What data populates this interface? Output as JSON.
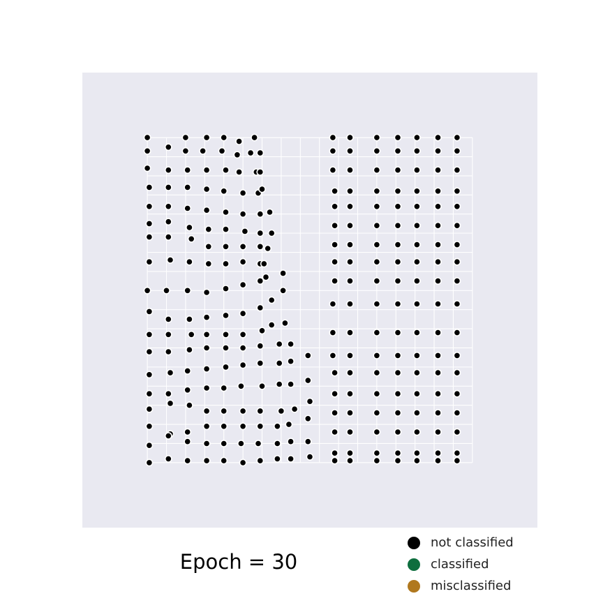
{
  "chart_data": {
    "type": "scatter",
    "title": "Epoch = 30",
    "xlabel": "",
    "ylabel": "",
    "xlim": [
      -3.4,
      20.4
    ],
    "ylim": [
      -3.4,
      20.4
    ],
    "grid": true,
    "legend_placement": "bottom-right",
    "x_gridlines": [
      0,
      1,
      2,
      3,
      4,
      5,
      6,
      7,
      8,
      9,
      10,
      11,
      12,
      13,
      14,
      15,
      16,
      17
    ],
    "y_gridlines": [
      0,
      1,
      2,
      3,
      4,
      5,
      6,
      7,
      8,
      9,
      10,
      11,
      12,
      13,
      14,
      15,
      16,
      17
    ],
    "series": [
      {
        "name": "not classified",
        "color": "#000000",
        "points": [
          [
            0,
            17
          ],
          [
            1.1,
            16.5
          ],
          [
            2,
            17
          ],
          [
            3.1,
            17
          ],
          [
            4,
            17
          ],
          [
            4.8,
            16.8
          ],
          [
            5.6,
            17
          ],
          [
            0,
            16.3
          ],
          [
            2,
            16.3
          ],
          [
            2.9,
            16.3
          ],
          [
            3.9,
            16.3
          ],
          [
            4.7,
            16.1
          ],
          [
            5.4,
            16.2
          ],
          [
            5.9,
            16.2
          ],
          [
            0,
            15.4
          ],
          [
            1.1,
            15.3
          ],
          [
            2.1,
            15.3
          ],
          [
            3.1,
            15.3
          ],
          [
            4.1,
            15.3
          ],
          [
            4.8,
            15.2
          ],
          [
            5.7,
            15.2
          ],
          [
            5.9,
            15.2
          ],
          [
            0.1,
            14.4
          ],
          [
            1.1,
            14.4
          ],
          [
            2.1,
            14.4
          ],
          [
            3.1,
            14.3
          ],
          [
            4,
            14.2
          ],
          [
            5,
            14.1
          ],
          [
            5.8,
            14.1
          ],
          [
            6,
            14.3
          ],
          [
            0.1,
            13.4
          ],
          [
            1.1,
            13.4
          ],
          [
            2.1,
            13.3
          ],
          [
            3.1,
            13.2
          ],
          [
            4.1,
            13.1
          ],
          [
            5,
            13
          ],
          [
            5.9,
            13
          ],
          [
            6.4,
            13.1
          ],
          [
            0.1,
            12.5
          ],
          [
            1.1,
            12.6
          ],
          [
            2.2,
            12.3
          ],
          [
            3.2,
            12.2
          ],
          [
            4.1,
            12.2
          ],
          [
            5.1,
            12.1
          ],
          [
            5.9,
            12
          ],
          [
            6.5,
            12
          ],
          [
            0.1,
            11.8
          ],
          [
            1.1,
            11.8
          ],
          [
            2.3,
            11.7
          ],
          [
            3.2,
            11.3
          ],
          [
            4.1,
            11.3
          ],
          [
            5,
            11.3
          ],
          [
            5.9,
            11.3
          ],
          [
            6.3,
            11.2
          ],
          [
            0.1,
            10.5
          ],
          [
            1.2,
            10.6
          ],
          [
            2.2,
            10.5
          ],
          [
            3.2,
            10.4
          ],
          [
            4.1,
            10.4
          ],
          [
            5,
            10.5
          ],
          [
            5.9,
            10.4
          ],
          [
            6.1,
            10.4
          ],
          [
            0,
            9
          ],
          [
            1,
            9
          ],
          [
            2.1,
            9
          ],
          [
            3.1,
            8.9
          ],
          [
            4.1,
            9.1
          ],
          [
            5,
            9.3
          ],
          [
            5.9,
            9.5
          ],
          [
            6.2,
            9.7
          ],
          [
            7.1,
            9.9
          ],
          [
            0.1,
            7.9
          ],
          [
            1.1,
            7.5
          ],
          [
            2.2,
            7.5
          ],
          [
            3.1,
            7.6
          ],
          [
            4.1,
            7.7
          ],
          [
            5,
            7.8
          ],
          [
            5.9,
            8.1
          ],
          [
            6.5,
            8.5
          ],
          [
            7.1,
            9
          ],
          [
            0.1,
            6.7
          ],
          [
            1.1,
            6.7
          ],
          [
            2.3,
            6.7
          ],
          [
            3.1,
            6.7
          ],
          [
            4.1,
            6.7
          ],
          [
            5,
            6.7
          ],
          [
            6,
            6.9
          ],
          [
            6.5,
            7.2
          ],
          [
            7.2,
            7.3
          ],
          [
            0.1,
            5.8
          ],
          [
            1.1,
            5.8
          ],
          [
            2.2,
            5.9
          ],
          [
            3.1,
            6
          ],
          [
            4.1,
            6
          ],
          [
            5,
            6
          ],
          [
            5.9,
            6.1
          ],
          [
            6.9,
            6.2
          ],
          [
            7.5,
            6.2
          ],
          [
            0.1,
            4.6
          ],
          [
            1.2,
            4.7
          ],
          [
            2.1,
            4.8
          ],
          [
            3.1,
            4.9
          ],
          [
            4.1,
            5
          ],
          [
            5,
            5.1
          ],
          [
            5.9,
            5.2
          ],
          [
            6.9,
            5.2
          ],
          [
            7.5,
            5.3
          ],
          [
            8.4,
            5.6
          ],
          [
            0.1,
            3.6
          ],
          [
            1.1,
            3.6
          ],
          [
            2.1,
            3.8
          ],
          [
            3.1,
            3.9
          ],
          [
            4,
            3.9
          ],
          [
            4.9,
            4
          ],
          [
            6,
            4
          ],
          [
            6.9,
            4.1
          ],
          [
            7.5,
            4.1
          ],
          [
            8.4,
            4.3
          ],
          [
            0.1,
            2.8
          ],
          [
            1.2,
            3.1
          ],
          [
            2.2,
            3
          ],
          [
            3.1,
            2.7
          ],
          [
            4,
            2.7
          ],
          [
            5,
            2.7
          ],
          [
            5.9,
            2.7
          ],
          [
            7,
            2.7
          ],
          [
            7.7,
            2.8
          ],
          [
            8.5,
            3.2
          ],
          [
            0.1,
            1.9
          ],
          [
            1.2,
            1.5
          ],
          [
            2.1,
            1.6
          ],
          [
            3.1,
            1.9
          ],
          [
            4,
            1.9
          ],
          [
            5,
            1.9
          ],
          [
            5.9,
            1.9
          ],
          [
            6.8,
            1.9
          ],
          [
            7.4,
            2
          ],
          [
            8.4,
            2.3
          ],
          [
            0.1,
            0.9
          ],
          [
            1.1,
            1.4
          ],
          [
            2.1,
            1.1
          ],
          [
            3.1,
            1
          ],
          [
            4,
            1
          ],
          [
            4.9,
            1
          ],
          [
            5.8,
            1
          ],
          [
            6.8,
            1
          ],
          [
            7.5,
            1.1
          ],
          [
            8.4,
            1.1
          ],
          [
            0.1,
            0
          ],
          [
            1.1,
            0.2
          ],
          [
            2.1,
            0.1
          ],
          [
            3.1,
            0.1
          ],
          [
            4,
            0.1
          ],
          [
            5,
            0
          ],
          [
            5.9,
            0.1
          ],
          [
            6.8,
            0.2
          ],
          [
            7.5,
            0.2
          ],
          [
            8.5,
            0.3
          ],
          [
            9.7,
            17
          ],
          [
            10.6,
            17
          ],
          [
            12,
            17
          ],
          [
            13.1,
            17
          ],
          [
            14.1,
            17
          ],
          [
            15.2,
            17
          ],
          [
            16.2,
            17
          ],
          [
            9.7,
            16.3
          ],
          [
            10.6,
            16.3
          ],
          [
            12,
            16.3
          ],
          [
            13.1,
            16.3
          ],
          [
            14.1,
            16.3
          ],
          [
            15.2,
            16.3
          ],
          [
            16.2,
            16.3
          ],
          [
            9.7,
            15.3
          ],
          [
            10.6,
            15.3
          ],
          [
            12,
            15.3
          ],
          [
            13.1,
            15.3
          ],
          [
            14.1,
            15.3
          ],
          [
            15.2,
            15.3
          ],
          [
            16.2,
            15.3
          ],
          [
            9.8,
            14.2
          ],
          [
            10.6,
            14.2
          ],
          [
            12,
            14.2
          ],
          [
            13.1,
            14.2
          ],
          [
            14.1,
            14.2
          ],
          [
            15.2,
            14.2
          ],
          [
            16.2,
            14.2
          ],
          [
            9.8,
            13.4
          ],
          [
            10.6,
            13.4
          ],
          [
            12,
            13.4
          ],
          [
            13.1,
            13.4
          ],
          [
            14.1,
            13.4
          ],
          [
            15.2,
            13.4
          ],
          [
            16.2,
            13.4
          ],
          [
            9.8,
            12.4
          ],
          [
            10.6,
            12.4
          ],
          [
            12,
            12.4
          ],
          [
            13.1,
            12.4
          ],
          [
            14.1,
            12.4
          ],
          [
            15.2,
            12.4
          ],
          [
            16.2,
            12.4
          ],
          [
            9.8,
            11.4
          ],
          [
            10.6,
            11.4
          ],
          [
            12,
            11.4
          ],
          [
            13.1,
            11.4
          ],
          [
            14.1,
            11.4
          ],
          [
            15.2,
            11.4
          ],
          [
            16.2,
            11.4
          ],
          [
            9.8,
            10.5
          ],
          [
            10.6,
            10.5
          ],
          [
            12,
            10.5
          ],
          [
            13.1,
            10.5
          ],
          [
            14.1,
            10.5
          ],
          [
            15.2,
            10.5
          ],
          [
            16.2,
            10.5
          ],
          [
            9.8,
            9.5
          ],
          [
            10.6,
            9.5
          ],
          [
            12,
            9.5
          ],
          [
            13.1,
            9.5
          ],
          [
            14.1,
            9.5
          ],
          [
            15.2,
            9.5
          ],
          [
            16.2,
            9.5
          ],
          [
            9.7,
            8.3
          ],
          [
            10.6,
            8.3
          ],
          [
            12,
            8.3
          ],
          [
            13.1,
            8.3
          ],
          [
            14.1,
            8.3
          ],
          [
            15.2,
            8.3
          ],
          [
            16.2,
            8.3
          ],
          [
            9.7,
            6.8
          ],
          [
            10.6,
            6.8
          ],
          [
            12,
            6.8
          ],
          [
            13.1,
            6.8
          ],
          [
            14.1,
            6.8
          ],
          [
            15.2,
            6.8
          ],
          [
            16.2,
            6.8
          ],
          [
            9.7,
            5.6
          ],
          [
            10.6,
            5.6
          ],
          [
            12,
            5.6
          ],
          [
            13.1,
            5.6
          ],
          [
            14.1,
            5.6
          ],
          [
            15.2,
            5.6
          ],
          [
            16.2,
            5.6
          ],
          [
            9.8,
            4.7
          ],
          [
            10.6,
            4.7
          ],
          [
            12,
            4.7
          ],
          [
            13.1,
            4.7
          ],
          [
            14.1,
            4.7
          ],
          [
            15.2,
            4.7
          ],
          [
            16.2,
            4.7
          ],
          [
            9.8,
            3.6
          ],
          [
            10.6,
            3.6
          ],
          [
            12,
            3.6
          ],
          [
            13.1,
            3.6
          ],
          [
            14.1,
            3.6
          ],
          [
            15.2,
            3.6
          ],
          [
            16.2,
            3.6
          ],
          [
            9.8,
            2.6
          ],
          [
            10.6,
            2.6
          ],
          [
            12,
            2.6
          ],
          [
            13.1,
            2.6
          ],
          [
            14.1,
            2.6
          ],
          [
            15.2,
            2.6
          ],
          [
            16.2,
            2.6
          ],
          [
            9.8,
            1.6
          ],
          [
            10.6,
            1.6
          ],
          [
            12,
            1.6
          ],
          [
            13.1,
            1.6
          ],
          [
            14.1,
            1.6
          ],
          [
            15.2,
            1.6
          ],
          [
            16.2,
            1.6
          ],
          [
            9.8,
            0.5
          ],
          [
            10.6,
            0.5
          ],
          [
            12,
            0.5
          ],
          [
            13.1,
            0.5
          ],
          [
            14.1,
            0.5
          ],
          [
            15.2,
            0.5
          ],
          [
            16.2,
            0.5
          ],
          [
            9.8,
            0.1
          ],
          [
            10.6,
            0.1
          ],
          [
            12,
            0.1
          ],
          [
            13.1,
            0.1
          ],
          [
            14.1,
            0.1
          ],
          [
            15.2,
            0.1
          ],
          [
            16.2,
            0.1
          ]
        ]
      },
      {
        "name": "classified",
        "color": "#0e6e3e",
        "points": []
      },
      {
        "name": "misclassified",
        "color": "#b0781e",
        "points": []
      }
    ]
  }
}
